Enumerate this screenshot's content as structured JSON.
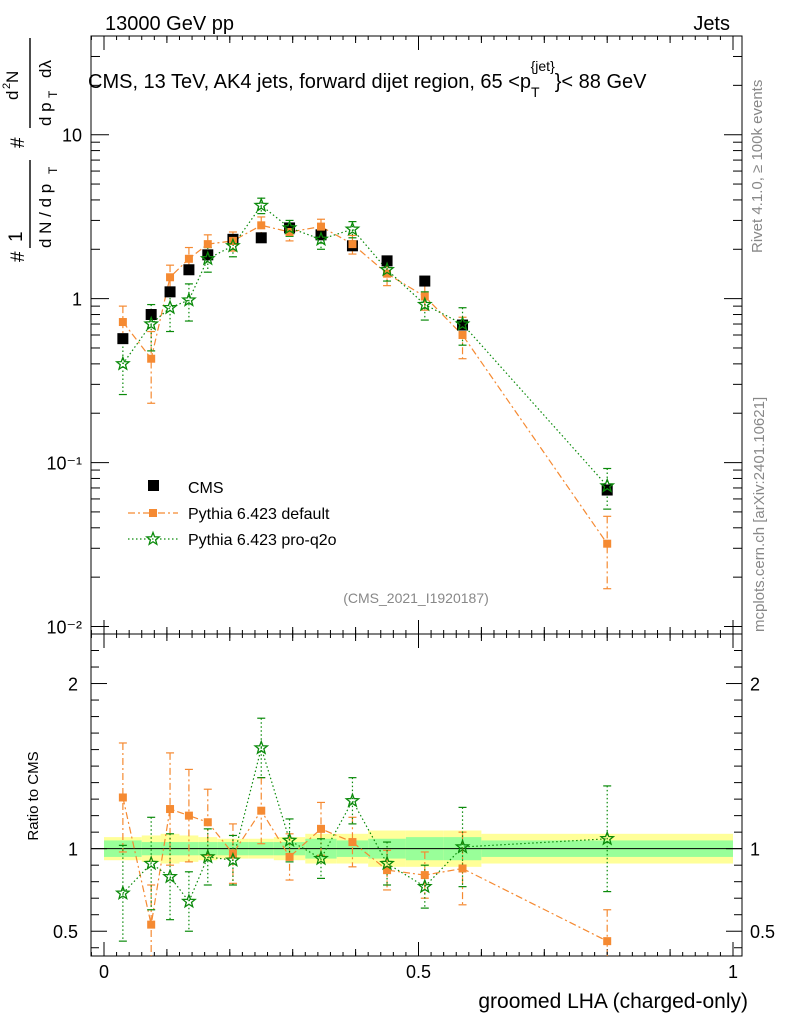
{
  "header": {
    "left": "13000 GeV pp",
    "right": "Jets"
  },
  "side": {
    "rivet": "Rivet 4.1.0, ≥ 100k events",
    "mcplots": "mcplots.cern.ch [arXiv:2401.10621]"
  },
  "colors": {
    "cms": "#000000",
    "default": "#f58a32",
    "proq2o": "#0a8a0a",
    "band_outer": "#ffff99",
    "band_inner": "#99ff99"
  },
  "chart_data": {
    "type": "scatter",
    "title": "CMS, 13 TeV, AK4 jets, forward dijet region, 65 <p_T^{jet}< 88 GeV",
    "title_main": "CMS, 13 TeV, AK4 jets, forward dijet region, 65 <p",
    "title_sup": "{jet}",
    "title_sub": "T",
    "title_tail": "}< 88 GeV",
    "analysis_id": "(CMS_2021_I1920187)",
    "xlabel": "groomed LHA (charged-only)",
    "ylabel": "1/(dN/dp_T) d²N/(dp_T dλ)",
    "ratio_ylabel": "Ratio to CMS",
    "xlim": [
      0,
      1
    ],
    "ylim": [
      0.009,
      40
    ],
    "yscale": "log",
    "ratio_ylim": [
      0.35,
      2.3
    ],
    "x_ticks": [
      "0",
      "0.5",
      "1"
    ],
    "y_ticks": [
      {
        "value": 10,
        "label": "10"
      },
      {
        "value": 1,
        "label": "1"
      },
      {
        "value": 0.1,
        "label": "10⁻¹"
      },
      {
        "value": 0.01,
        "label": "10⁻²"
      }
    ],
    "ratio_ticks": [
      {
        "value": 2,
        "label": "2"
      },
      {
        "value": 1,
        "label": "1"
      },
      {
        "value": 0.5,
        "label": "0.5"
      }
    ],
    "bins": [
      [
        0.0,
        0.06
      ],
      [
        0.06,
        0.09
      ],
      [
        0.09,
        0.12
      ],
      [
        0.12,
        0.15
      ],
      [
        0.15,
        0.18
      ],
      [
        0.18,
        0.23
      ],
      [
        0.23,
        0.27
      ],
      [
        0.27,
        0.32
      ],
      [
        0.32,
        0.37
      ],
      [
        0.37,
        0.42
      ],
      [
        0.42,
        0.48
      ],
      [
        0.48,
        0.54
      ],
      [
        0.54,
        0.6
      ],
      [
        0.6,
        1.0
      ]
    ],
    "cms_band_inner": [
      0.05,
      0.04,
      0.04,
      0.04,
      0.04,
      0.04,
      0.04,
      0.04,
      0.06,
      0.05,
      0.06,
      0.07,
      0.07,
      0.05
    ],
    "cms_band_outer": [
      0.07,
      0.08,
      0.09,
      0.08,
      0.07,
      0.06,
      0.06,
      0.07,
      0.09,
      0.09,
      0.11,
      0.11,
      0.11,
      0.09
    ],
    "series": [
      {
        "name": "CMS",
        "marker": "square",
        "x": [
          0.03,
          0.075,
          0.105,
          0.135,
          0.165,
          0.205,
          0.25,
          0.295,
          0.345,
          0.395,
          0.45,
          0.51,
          0.57,
          0.8
        ],
        "y": [
          0.57,
          0.8,
          1.1,
          1.5,
          1.85,
          2.3,
          2.35,
          2.7,
          2.45,
          2.1,
          1.7,
          1.28,
          0.69,
          0.068
        ],
        "err": [
          0.03,
          0.04,
          0.05,
          0.06,
          0.07,
          0.08,
          0.08,
          0.09,
          0.09,
          0.08,
          0.07,
          0.06,
          0.04,
          0.004
        ]
      },
      {
        "name": "Pythia 6.423 default",
        "marker": "square-small",
        "x": [
          0.03,
          0.075,
          0.105,
          0.135,
          0.165,
          0.205,
          0.25,
          0.295,
          0.345,
          0.395,
          0.45,
          0.51,
          0.57,
          0.8
        ],
        "y": [
          0.72,
          0.43,
          1.35,
          1.75,
          2.15,
          2.25,
          2.8,
          2.55,
          2.75,
          2.15,
          1.42,
          1.03,
          0.6,
          0.032
        ],
        "err": [
          0.18,
          0.2,
          0.25,
          0.3,
          0.3,
          0.3,
          0.35,
          0.3,
          0.3,
          0.28,
          0.22,
          0.18,
          0.17,
          0.015
        ],
        "ratio": [
          1.31,
          0.54,
          1.24,
          1.2,
          1.16,
          0.97,
          1.23,
          0.95,
          1.12,
          1.04,
          0.87,
          0.84,
          0.88,
          0.44
        ],
        "ratio_err": [
          0.33,
          0.24,
          0.34,
          0.28,
          0.2,
          0.18,
          0.2,
          0.14,
          0.16,
          0.15,
          0.12,
          0.14,
          0.22,
          0.19
        ]
      },
      {
        "name": "Pythia 6.423 pro-q2o",
        "marker": "star",
        "x": [
          0.03,
          0.075,
          0.105,
          0.135,
          0.165,
          0.205,
          0.25,
          0.295,
          0.345,
          0.395,
          0.45,
          0.51,
          0.57,
          0.8
        ],
        "y": [
          0.4,
          0.7,
          0.88,
          0.98,
          1.75,
          2.1,
          3.7,
          2.7,
          2.3,
          2.65,
          1.5,
          0.92,
          0.7,
          0.072
        ],
        "err": [
          0.14,
          0.22,
          0.25,
          0.25,
          0.3,
          0.3,
          0.4,
          0.3,
          0.3,
          0.3,
          0.22,
          0.18,
          0.18,
          0.02
        ],
        "ratio": [
          0.73,
          0.91,
          0.83,
          0.68,
          0.95,
          0.93,
          1.61,
          1.05,
          0.94,
          1.29,
          0.91,
          0.77,
          1.01,
          1.06
        ],
        "ratio_err": [
          0.29,
          0.28,
          0.26,
          0.18,
          0.17,
          0.15,
          0.18,
          0.13,
          0.12,
          0.14,
          0.13,
          0.13,
          0.24,
          0.32
        ]
      }
    ]
  }
}
